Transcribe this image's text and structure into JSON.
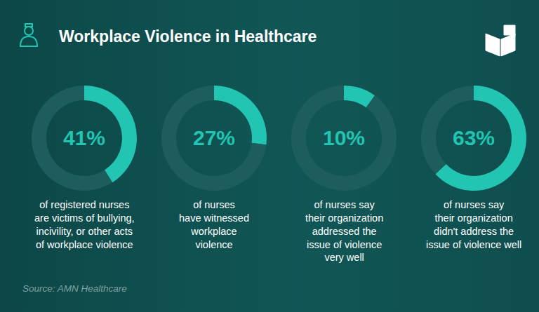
{
  "title": "Workplace Violence in Healthcare",
  "source": "Source: AMN Healthcare",
  "chart_data": [
    {
      "type": "pie",
      "values": [
        41,
        59
      ],
      "value_labels": [
        "41%",
        null
      ],
      "colors": [
        "#22c4b2",
        "#1d5d5d"
      ],
      "subtitle": "of registered nurses\nare victims of bullying,\nincivility, or other acts\nof workplace violence"
    },
    {
      "type": "pie",
      "values": [
        27,
        73
      ],
      "value_labels": [
        "27%",
        null
      ],
      "colors": [
        "#22c4b2",
        "#1d5d5d"
      ],
      "subtitle": "of nurses\nhave witnessed\nworkplace\nviolence"
    },
    {
      "type": "pie",
      "values": [
        10,
        90
      ],
      "value_labels": [
        "10%",
        null
      ],
      "colors": [
        "#22c4b2",
        "#1d5d5d"
      ],
      "subtitle": "of nurses say\ntheir organization\naddressed the\nissue of violence\nvery well"
    },
    {
      "type": "pie",
      "values": [
        63,
        37
      ],
      "value_labels": [
        "63%",
        null
      ],
      "colors": [
        "#22c4b2",
        "#1d5d5d"
      ],
      "subtitle": "of nurses say\ntheir organization\ndidn't address the\nissue of violence well"
    }
  ]
}
